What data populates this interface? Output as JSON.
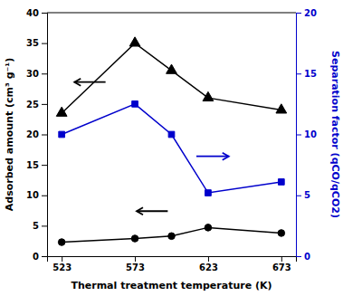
{
  "chart_data": {
    "type": "line",
    "x_label": "Thermal treatment temperature (K)",
    "y_label": "Adsorbed amount (cm³ g⁻¹)",
    "y2_label": "Separation factor (qCO/qCO2)",
    "x": [
      523,
      573,
      598,
      623,
      673
    ],
    "series": [
      {
        "color": "#000000",
        "marker": "triangle",
        "values": [
          23.5,
          35.0,
          30.5,
          26.0,
          24.0
        ]
      },
      {
        "color": "#000000",
        "marker": "circle",
        "values": [
          2.3,
          2.9,
          3.3,
          4.7,
          3.8
        ]
      },
      {
        "color": "#0000cc",
        "marker": "square",
        "axis": "y2",
        "values": [
          10.0,
          12.5,
          10.0,
          5.2,
          6.1
        ]
      }
    ],
    "xlim": [
      513,
      683
    ],
    "xticks": [
      523,
      573,
      623,
      673
    ],
    "ylim": [
      0,
      40
    ],
    "yticks": [
      0,
      5,
      10,
      15,
      20,
      25,
      30,
      35,
      40
    ],
    "y2lim": [
      0,
      20
    ],
    "y2ticks": [
      0,
      5,
      10,
      15,
      20
    ],
    "grid": false
  }
}
